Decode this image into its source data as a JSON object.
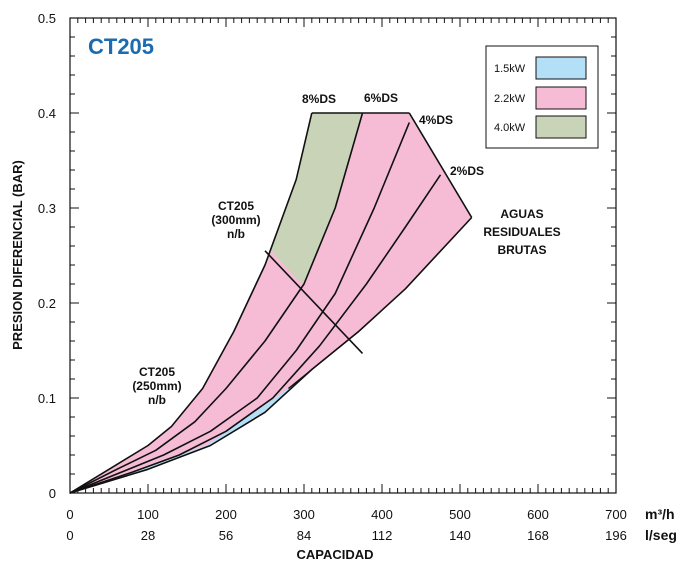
{
  "chart_data": {
    "type": "area",
    "title": "CT205",
    "xlabel": "CAPACIDAD",
    "ylabel": "PRESION DIFERENCIAL (BAR)",
    "x_unit_primary": "m³/h",
    "x_unit_secondary": "l/seg",
    "xlim": [
      0,
      700
    ],
    "ylim": [
      0,
      0.5
    ],
    "x_ticks": [
      "0",
      "100",
      "200",
      "300",
      "400",
      "500",
      "600",
      "700"
    ],
    "x_ticks_secondary": [
      "0",
      "28",
      "56",
      "84",
      "112",
      "140",
      "168",
      "196"
    ],
    "y_ticks": [
      "0",
      "0.1",
      "0.2",
      "0.3",
      "0.4",
      "0.5"
    ],
    "grid": false,
    "legend_position": "top-right",
    "legend": [
      {
        "label": "1.5kW",
        "color": "#b3e0f7"
      },
      {
        "label": "2.2kW",
        "color": "#f6bcd6"
      },
      {
        "label": "4.0kW",
        "color": "#c8d3b8"
      }
    ],
    "curves": {
      "ds8": [
        [
          0,
          0
        ],
        [
          50,
          0.025
        ],
        [
          100,
          0.05
        ],
        [
          130,
          0.07
        ],
        [
          170,
          0.11
        ],
        [
          210,
          0.17
        ],
        [
          250,
          0.24
        ],
        [
          290,
          0.33
        ],
        [
          310,
          0.4
        ]
      ],
      "ds6": [
        [
          0,
          0
        ],
        [
          60,
          0.025
        ],
        [
          110,
          0.045
        ],
        [
          160,
          0.075
        ],
        [
          200,
          0.11
        ],
        [
          250,
          0.16
        ],
        [
          300,
          0.22
        ],
        [
          340,
          0.3
        ],
        [
          375,
          0.4
        ]
      ],
      "ds4": [
        [
          0,
          0
        ],
        [
          60,
          0.02
        ],
        [
          120,
          0.04
        ],
        [
          180,
          0.065
        ],
        [
          240,
          0.1
        ],
        [
          290,
          0.15
        ],
        [
          340,
          0.21
        ],
        [
          390,
          0.3
        ],
        [
          435,
          0.39
        ]
      ],
      "ds2": [
        [
          0,
          0
        ],
        [
          80,
          0.022
        ],
        [
          140,
          0.04
        ],
        [
          200,
          0.065
        ],
        [
          260,
          0.1
        ],
        [
          320,
          0.155
        ],
        [
          380,
          0.22
        ],
        [
          430,
          0.28
        ],
        [
          475,
          0.335
        ]
      ],
      "residual": [
        [
          0,
          0
        ],
        [
          100,
          0.025
        ],
        [
          180,
          0.05
        ],
        [
          250,
          0.085
        ],
        [
          310,
          0.13
        ],
        [
          370,
          0.17
        ],
        [
          430,
          0.215
        ],
        [
          515,
          0.29
        ]
      ],
      "top_line": [
        [
          310,
          0.4
        ],
        [
          435,
          0.4
        ]
      ],
      "right_edge": [
        [
          435,
          0.4
        ],
        [
          515,
          0.29
        ]
      ],
      "div_300mm": [
        [
          250,
          0.255
        ],
        [
          375,
          0.147
        ]
      ],
      "div_1_5kW": [
        [
          0,
          0
        ],
        [
          175,
          0.05
        ],
        [
          280,
          0.11
        ],
        [
          370,
          0.17
        ]
      ]
    },
    "annotations": [
      {
        "id": "ds8",
        "text": "8%DS"
      },
      {
        "id": "ds6",
        "text": "6%DS"
      },
      {
        "id": "ds4",
        "text": "4%DS"
      },
      {
        "id": "ds2",
        "text": "2%DS"
      },
      {
        "id": "aguas",
        "lines": [
          "AGUAS",
          "RESIDUALES",
          "BRUTAS"
        ]
      },
      {
        "id": "ct300",
        "lines": [
          "CT205",
          "(300mm)",
          "n/b"
        ]
      },
      {
        "id": "ct250",
        "lines": [
          "CT205",
          "(250mm)",
          "n/b"
        ]
      }
    ]
  }
}
